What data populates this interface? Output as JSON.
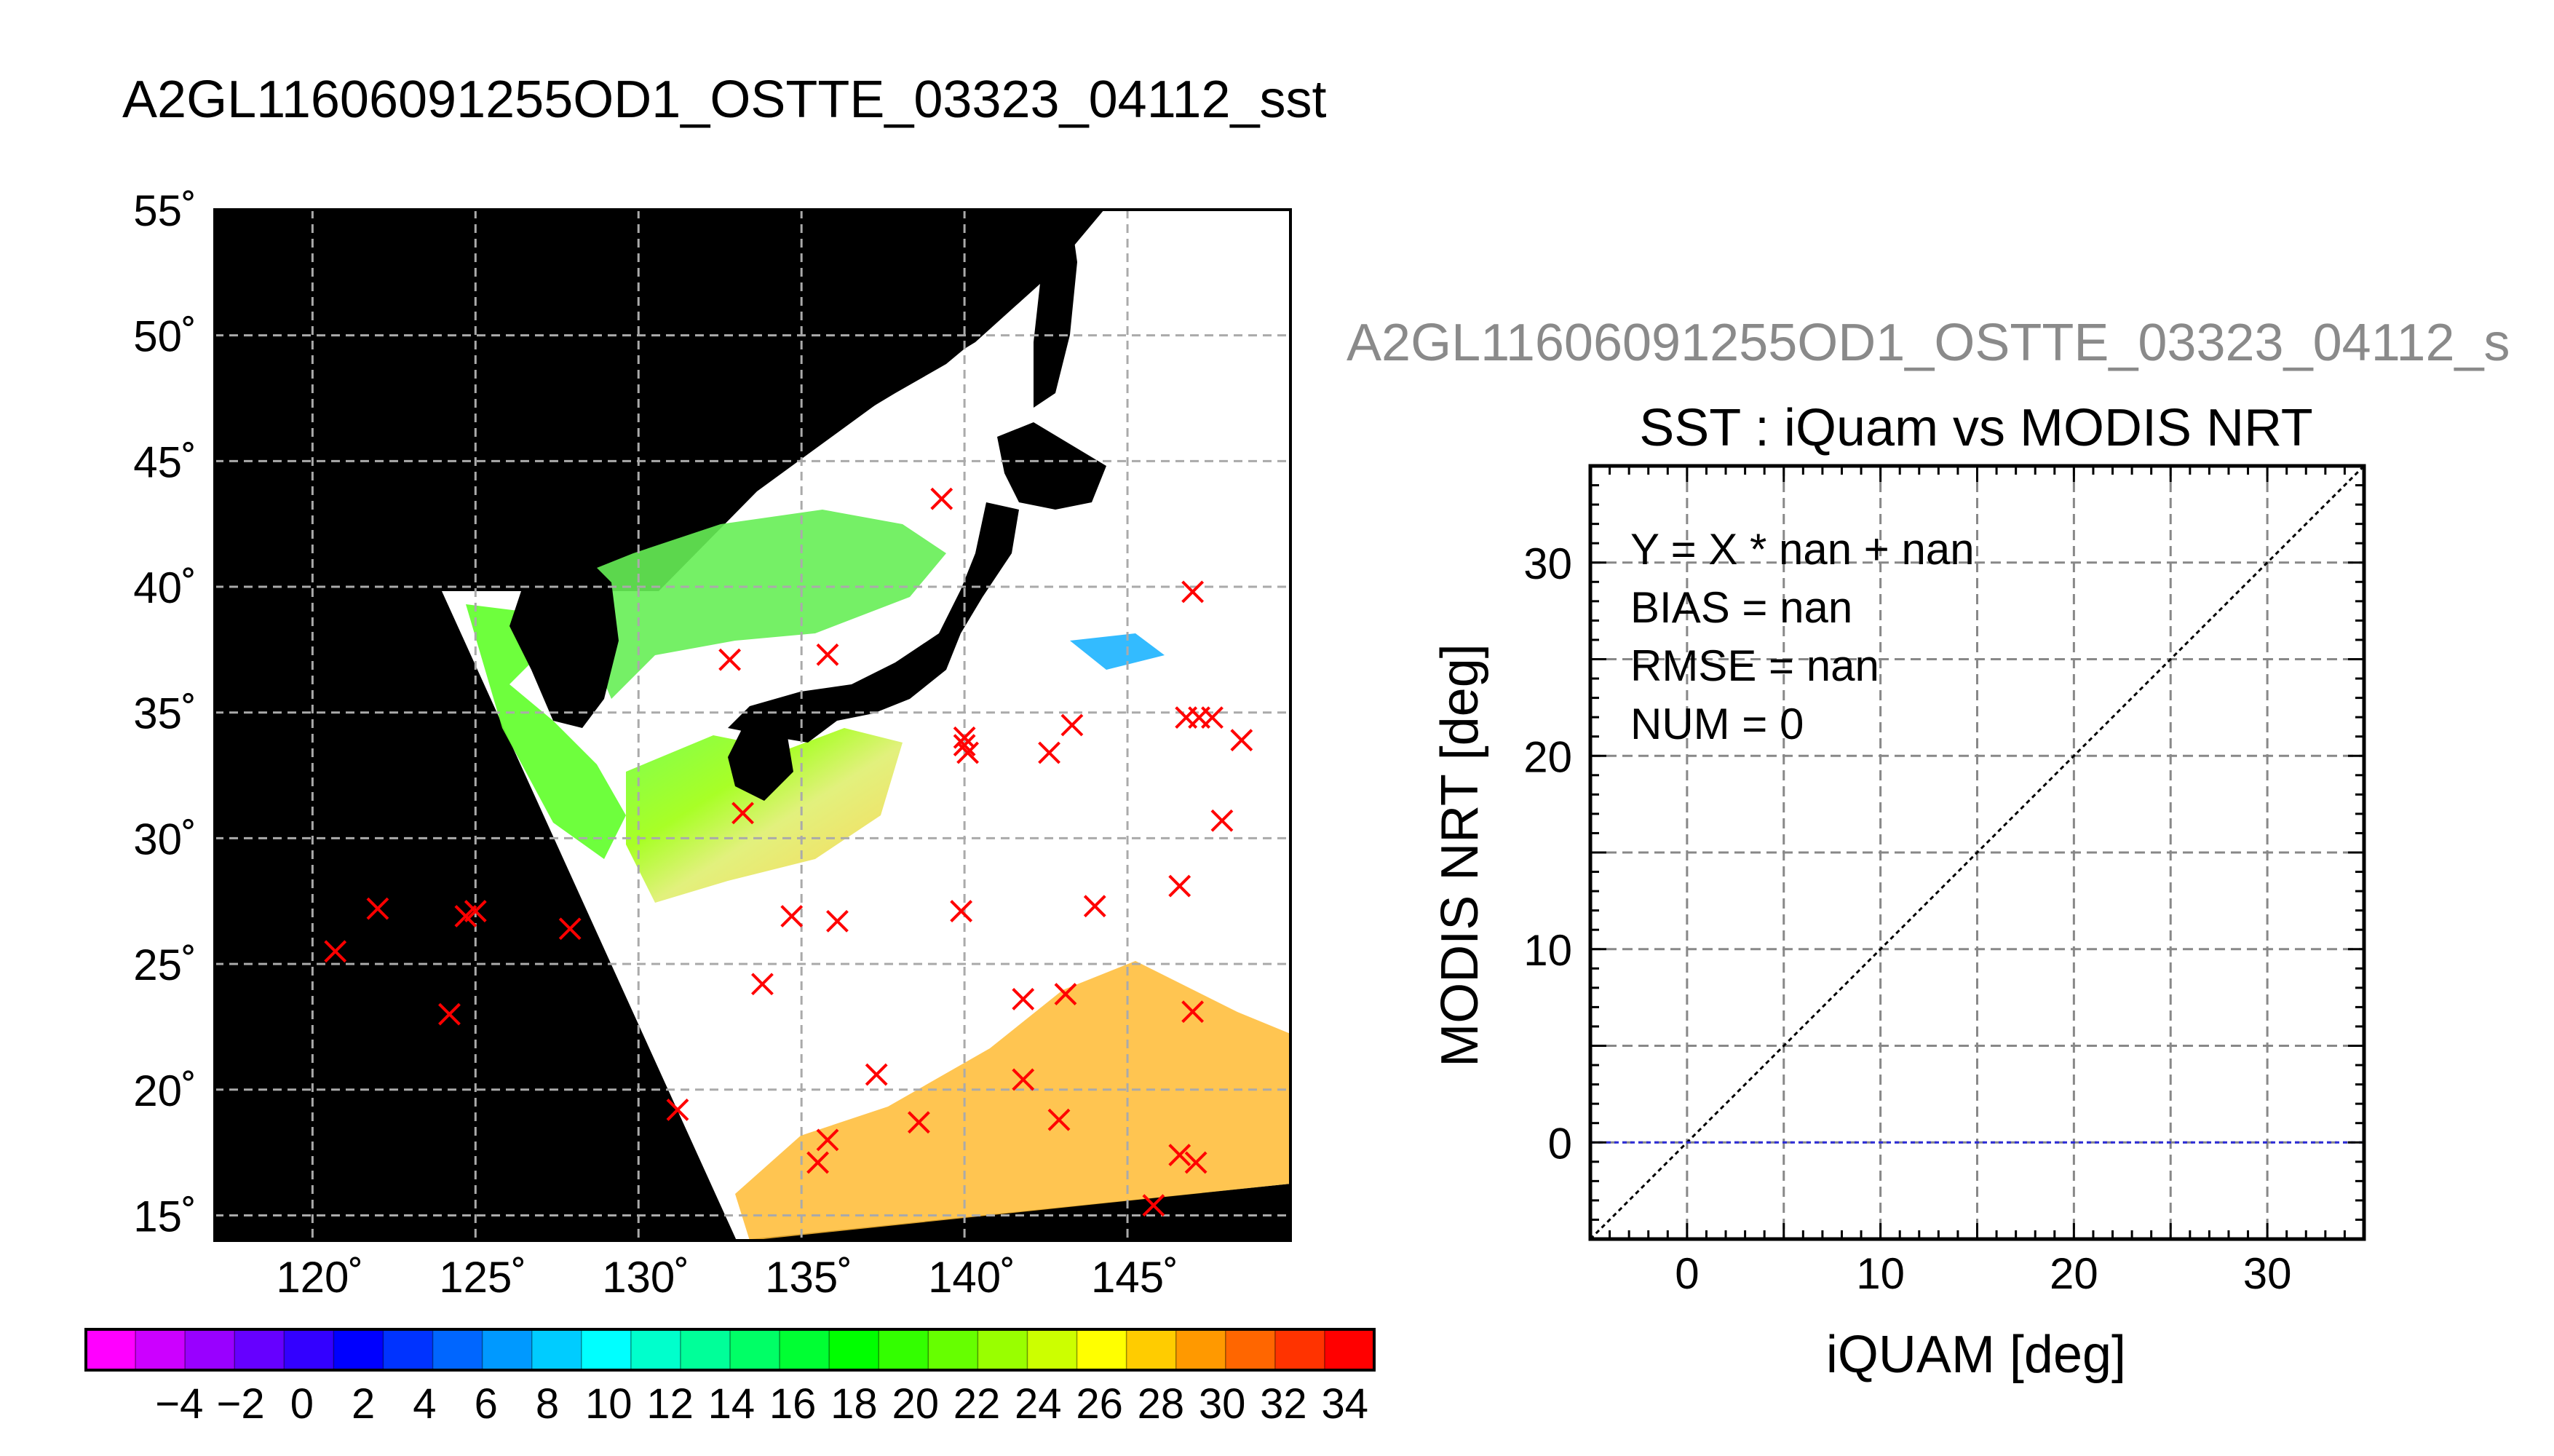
{
  "map_panel": {
    "title": "A2GL11606091255OD1_OSTTE_03323_04112_sst",
    "lat_labels": [
      "55˚",
      "50˚",
      "45˚",
      "40˚",
      "35˚",
      "30˚",
      "25˚",
      "20˚",
      "15˚"
    ],
    "lon_labels": [
      "120˚",
      "125˚",
      "130˚",
      "135˚",
      "140˚",
      "145˚"
    ],
    "colorbar_labels": [
      "−4",
      "−2",
      "0",
      "2",
      "4",
      "6",
      "8",
      "10",
      "12",
      "14",
      "16",
      "18",
      "20",
      "22",
      "24",
      "26",
      "28",
      "30",
      "32",
      "34"
    ],
    "colors": {
      "land": "#000000",
      "swath_background": "#ffffff",
      "marker": "#ff0000",
      "colorbar": [
        "#ff00ff",
        "#cc00ff",
        "#9900ff",
        "#6600ff",
        "#3300ff",
        "#0000ff",
        "#0033ff",
        "#0066ff",
        "#0099ff",
        "#00ccff",
        "#00ffff",
        "#00ffcc",
        "#00ff99",
        "#00ff66",
        "#00ff33",
        "#00ff00",
        "#33ff00",
        "#66ff00",
        "#99ff00",
        "#ccff00",
        "#ffff00",
        "#ffcc00",
        "#ff9900",
        "#ff6600",
        "#ff3300",
        "#ff0000"
      ]
    }
  },
  "chart_data": [
    {
      "type": "scatter",
      "title": "A2GL11606091255OD1_OSTTE_03323_04112_sst",
      "xlabel": "",
      "ylabel": "",
      "xlim": [
        117,
        150
      ],
      "ylim": [
        14,
        55
      ],
      "grid": true,
      "series": [
        {
          "x": [
            139.3,
            147.0,
            132.8,
            135.8,
            133.2,
            143.3,
            140.0,
            140.0,
            140.1,
            142.6,
            146.8,
            147.2,
            147.6,
            148.5,
            147.9,
            146.6,
            120.7,
            122.0,
            124.7,
            125.0,
            124.2,
            127.9,
            134.7,
            136.1,
            139.9,
            144.0,
            133.8,
            141.8,
            143.1,
            147.0,
            137.3,
            141.8,
            131.2,
            135.8,
            138.6,
            142.9,
            135.5,
            146.6,
            147.1,
            145.8
          ],
          "y": [
            43.5,
            39.8,
            37.1,
            37.3,
            31.0,
            34.5,
            34.0,
            33.7,
            33.4,
            33.4,
            34.8,
            34.8,
            34.8,
            33.9,
            30.7,
            28.1,
            25.5,
            27.2,
            26.9,
            27.1,
            23.0,
            26.4,
            26.9,
            26.7,
            27.1,
            27.3,
            24.2,
            23.6,
            23.8,
            23.1,
            20.6,
            20.4,
            19.2,
            18.0,
            18.7,
            18.8,
            17.1,
            17.4,
            17.1,
            15.4
          ]
        }
      ]
    },
    {
      "type": "scatter",
      "title": "SST : iQuam vs MODIS NRT",
      "header": "A2GL11606091255OD1_OSTTE_03323_04112_s",
      "xlabel": "iQUAM [deg]",
      "ylabel": "MODIS NRT [deg]",
      "xlim": [
        -5,
        35
      ],
      "ylim": [
        -5,
        35
      ],
      "xticks": [
        0,
        10,
        20,
        30
      ],
      "yticks": [
        0,
        10,
        20,
        30
      ],
      "grid": true,
      "annotations": [
        "Y = X * nan + nan",
        "BIAS = nan",
        "RMSE = nan",
        "NUM = 0"
      ],
      "lines": [
        {
          "kind": "identity",
          "x": [
            -5,
            35
          ],
          "y": [
            -5,
            35
          ],
          "color": "#000000",
          "style": "dotted"
        },
        {
          "kind": "fit",
          "x": [
            -5,
            35
          ],
          "y": [
            0,
            0
          ],
          "color": "#2b2bd6",
          "style": "dotted"
        }
      ],
      "series": []
    }
  ]
}
